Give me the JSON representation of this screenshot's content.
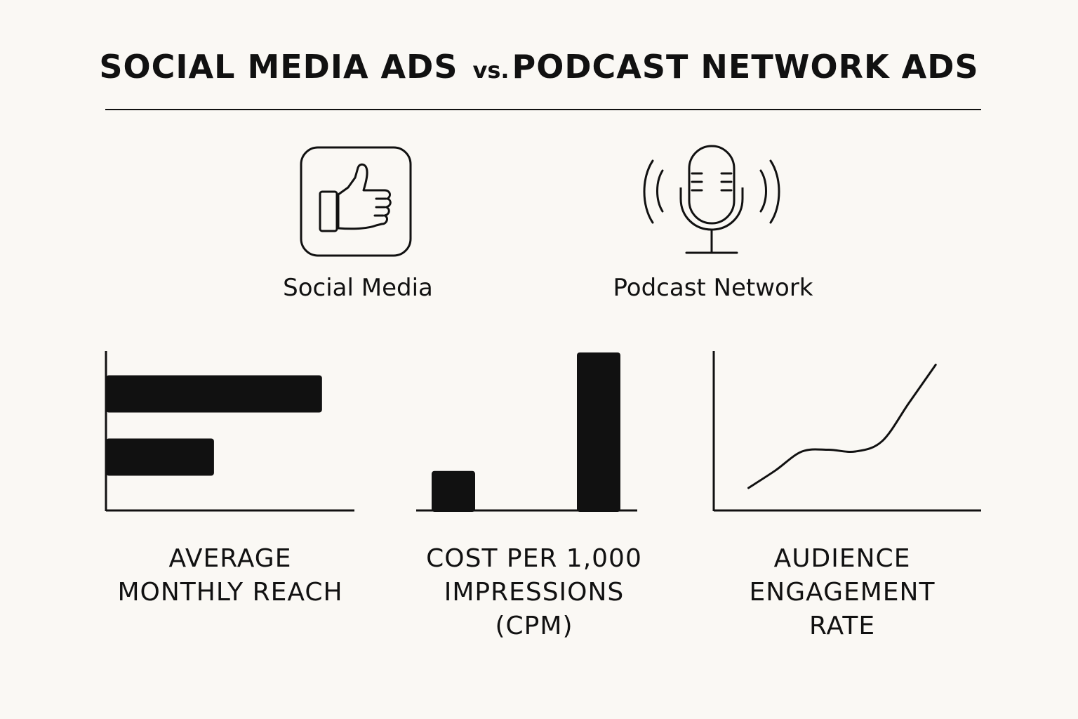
{
  "header": {
    "title_left": "SOCIAL MEDIA ADS",
    "title_vs": "vs.",
    "title_right": "PODCAST NETWORK ADS"
  },
  "legend": {
    "social": {
      "label": "Social Media",
      "icon": "thumbs-up-icon"
    },
    "podcast": {
      "label": "Podcast Network",
      "icon": "microphone-icon"
    }
  },
  "colors": {
    "ink": "#111111",
    "background": "#faf8f4"
  },
  "chart_data": [
    {
      "type": "bar",
      "orientation": "horizontal",
      "title": "AVERAGE MONTHLY REACH",
      "title_lines": [
        "AVERAGE",
        "MONTHLY REACH"
      ],
      "categories": [
        "Social Media",
        "Podcast Network"
      ],
      "values": [
        100,
        50
      ],
      "xlim": [
        0,
        115
      ],
      "grid": false
    },
    {
      "type": "bar",
      "orientation": "vertical",
      "title": "COST PER 1,000 IMPRESSIONS (CPM)",
      "title_lines": [
        "COST PER 1,000",
        "IMPRESSIONS",
        "(CPM)"
      ],
      "categories": [
        "Social Media",
        "Podcast Network"
      ],
      "values": [
        25,
        100
      ],
      "ylim": [
        0,
        100
      ],
      "grid": false
    },
    {
      "type": "line",
      "title": "AUDIENCE ENGAGEMENT RATE",
      "title_lines": [
        "AUDIENCE",
        "ENGAGEMENT",
        "RATE"
      ],
      "x": [
        0,
        1,
        2,
        3,
        4,
        5,
        6,
        7
      ],
      "y": [
        13,
        23,
        34,
        35,
        34,
        40,
        62,
        84
      ],
      "xlim": [
        -1.3,
        8.7
      ],
      "ylim": [
        0,
        100
      ],
      "grid": false
    }
  ]
}
